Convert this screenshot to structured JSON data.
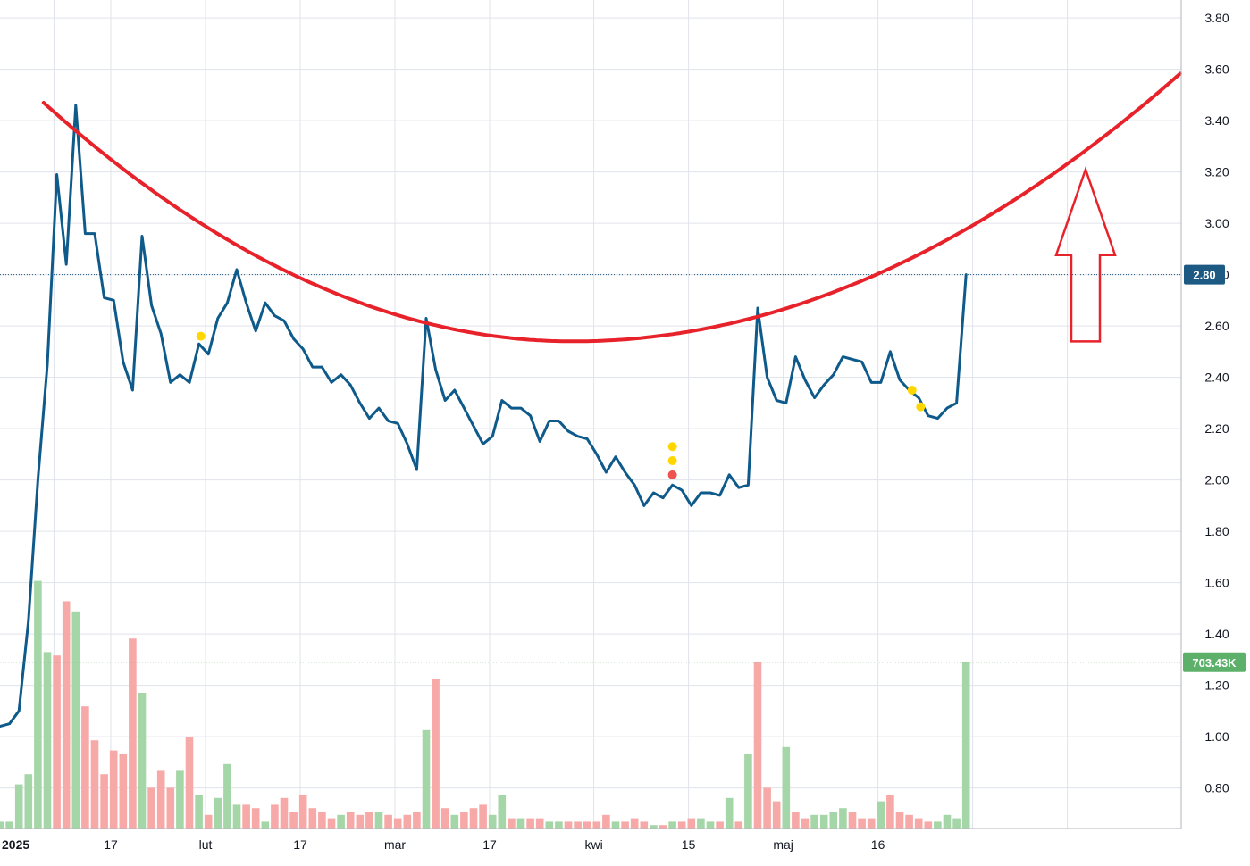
{
  "colors": {
    "price_line": "#0e5a8a",
    "trend_curve": "#e8222a",
    "arrow": "#e8222a",
    "vol_up": "#a5d6a7",
    "vol_down": "#f7a9a8",
    "grid": "#e0e3eb",
    "price_badge": "#1c5a83",
    "volume_badge": "#5cb06a",
    "dot_yellow": "#ffd600",
    "dot_red": "#ef5350"
  },
  "chart_data": {
    "type": "line",
    "y_axis": {
      "ticks": [
        "3.80",
        "3.60",
        "3.40",
        "3.20",
        "3.00",
        "2.80",
        "2.60",
        "2.40",
        "2.20",
        "2.00",
        "1.80",
        "1.60",
        "1.40",
        "1.20",
        "1.00",
        "0.80"
      ],
      "range": [
        0.64,
        3.9
      ],
      "side": "right"
    },
    "x_axis": {
      "labels": [
        {
          "text": "2025",
          "i": -2,
          "bold": true
        },
        {
          "text": "17",
          "i": 10
        },
        {
          "text": "lut",
          "i": 20
        },
        {
          "text": "17",
          "i": 30
        },
        {
          "text": "mar",
          "i": 40
        },
        {
          "text": "17",
          "i": 50
        },
        {
          "text": "kwi",
          "i": 61
        },
        {
          "text": "15",
          "i": 71
        },
        {
          "text": "maj",
          "i": 81
        },
        {
          "text": "16",
          "i": 91
        }
      ]
    },
    "price_series": [
      1.04,
      1.05,
      1.1,
      1.45,
      2.0,
      2.45,
      3.19,
      2.84,
      3.46,
      2.96,
      2.96,
      2.71,
      2.7,
      2.46,
      2.35,
      2.95,
      2.68,
      2.57,
      2.38,
      2.41,
      2.38,
      2.53,
      2.49,
      2.63,
      2.69,
      2.82,
      2.69,
      2.58,
      2.69,
      2.64,
      2.62,
      2.55,
      2.51,
      2.44,
      2.44,
      2.38,
      2.41,
      2.37,
      2.3,
      2.24,
      2.28,
      2.23,
      2.22,
      2.14,
      2.04,
      2.63,
      2.43,
      2.31,
      2.35,
      2.28,
      2.21,
      2.14,
      2.17,
      2.31,
      2.28,
      2.28,
      2.25,
      2.15,
      2.23,
      2.23,
      2.19,
      2.17,
      2.16,
      2.1,
      2.03,
      2.09,
      2.03,
      1.98,
      1.9,
      1.95,
      1.93,
      1.98,
      1.96,
      1.9,
      1.95,
      1.95,
      1.94,
      2.02,
      1.97,
      1.98,
      2.67,
      2.4,
      2.31,
      2.3,
      2.48,
      2.39,
      2.32,
      2.37,
      2.41,
      2.48,
      2.47,
      2.46,
      2.38,
      2.38,
      2.5,
      2.39,
      2.35,
      2.32,
      2.25,
      2.24,
      2.28,
      2.3,
      2.8
    ],
    "volume_series": [
      0.02,
      0.02,
      0.13,
      0.16,
      0.73,
      0.52,
      0.51,
      0.67,
      0.64,
      0.36,
      0.26,
      0.16,
      0.23,
      0.22,
      0.56,
      0.4,
      0.12,
      0.17,
      0.12,
      0.17,
      0.27,
      0.1,
      0.04,
      0.09,
      0.19,
      0.07,
      0.07,
      0.06,
      0.02,
      0.07,
      0.09,
      0.05,
      0.1,
      0.06,
      0.05,
      0.03,
      0.04,
      0.05,
      0.04,
      0.05,
      0.05,
      0.04,
      0.03,
      0.04,
      0.05,
      0.29,
      0.44,
      0.06,
      0.04,
      0.05,
      0.06,
      0.07,
      0.04,
      0.1,
      0.03,
      0.03,
      0.03,
      0.03,
      0.02,
      0.02,
      0.02,
      0.02,
      0.02,
      0.02,
      0.04,
      0.02,
      0.02,
      0.03,
      0.02,
      0.01,
      0.01,
      0.02,
      0.02,
      0.03,
      0.03,
      0.02,
      0.02,
      0.09,
      0.02,
      0.22,
      0.49,
      0.12,
      0.08,
      0.24,
      0.05,
      0.03,
      0.04,
      0.04,
      0.05,
      0.06,
      0.05,
      0.03,
      0.03,
      0.08,
      0.1,
      0.05,
      0.04,
      0.03,
      0.02,
      0.02,
      0.04,
      0.03,
      0.49
    ],
    "volume_direction": [
      1,
      1,
      1,
      1,
      1,
      1,
      -1,
      -1,
      1,
      -1,
      -1,
      -1,
      -1,
      -1,
      -1,
      1,
      -1,
      -1,
      -1,
      1,
      -1,
      1,
      -1,
      1,
      1,
      1,
      -1,
      -1,
      1,
      -1,
      -1,
      -1,
      -1,
      -1,
      -1,
      -1,
      1,
      -1,
      -1,
      -1,
      1,
      -1,
      -1,
      -1,
      -1,
      1,
      -1,
      -1,
      1,
      -1,
      -1,
      -1,
      1,
      1,
      -1,
      1,
      -1,
      -1,
      1,
      1,
      -1,
      -1,
      -1,
      -1,
      -1,
      1,
      -1,
      -1,
      -1,
      1,
      -1,
      1,
      -1,
      -1,
      1,
      1,
      -1,
      1,
      -1,
      1,
      -1,
      -1,
      -1,
      1,
      -1,
      -1,
      1,
      1,
      1,
      1,
      -1,
      -1,
      -1,
      1,
      -1,
      -1,
      -1,
      -1,
      -1,
      1,
      1,
      1
    ],
    "curve": {
      "points": [
        {
          "i": 4.6,
          "y": 3.47
        },
        {
          "i": 60.5,
          "y": 2.54
        },
        {
          "i": 120.7,
          "y": 3.46
        }
      ]
    },
    "dots": [
      {
        "i": 21.2,
        "y": 2.56,
        "color": "yellow"
      },
      {
        "i": 71.0,
        "y": 2.13,
        "color": "yellow"
      },
      {
        "i": 71.0,
        "y": 2.075,
        "color": "yellow"
      },
      {
        "i": 71.0,
        "y": 2.02,
        "color": "red"
      },
      {
        "i": 96.3,
        "y": 2.35,
        "color": "yellow"
      },
      {
        "i": 97.2,
        "y": 2.285,
        "color": "yellow"
      }
    ],
    "arrow": {
      "direction": "up",
      "tip_y": 3.21,
      "base_y": 2.54
    },
    "last_price_label": "2.80",
    "last_price": 2.8,
    "last_volume_label": "703.43K",
    "last_volume_level": 0.49
  }
}
